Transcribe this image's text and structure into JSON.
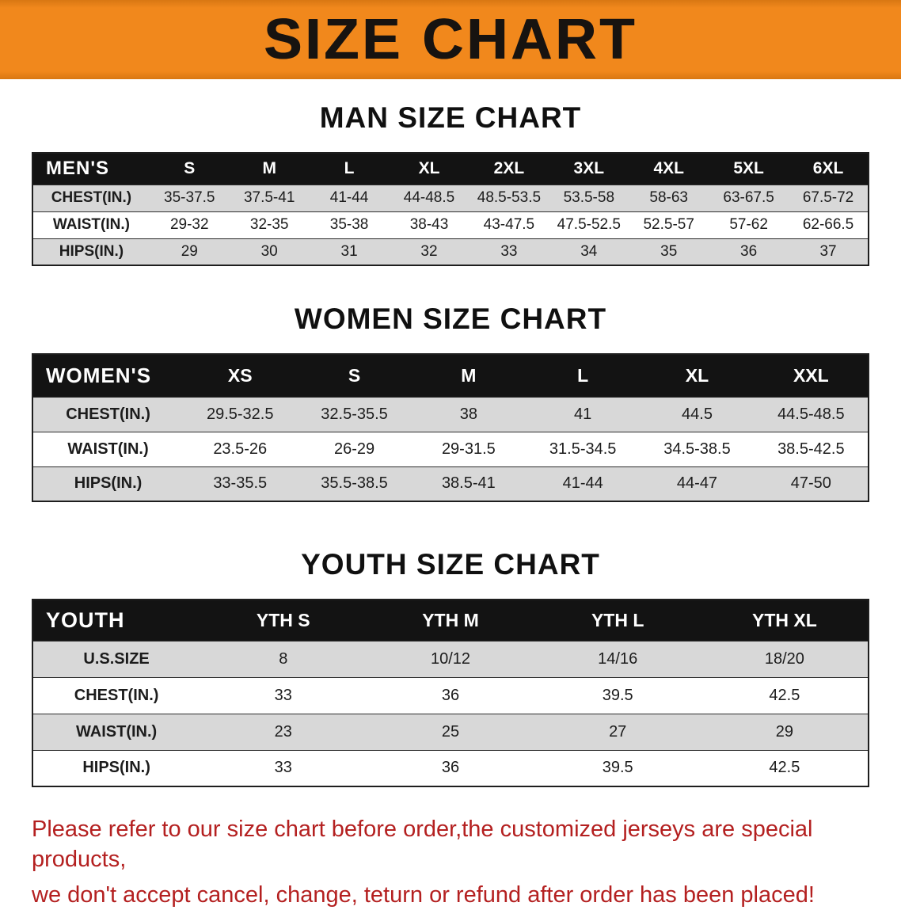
{
  "banner": {
    "title": "SIZE CHART"
  },
  "chart_data": [
    {
      "type": "table",
      "title": "MAN SIZE CHART",
      "corner_label": "MEN'S",
      "columns": [
        "S",
        "M",
        "L",
        "XL",
        "2XL",
        "3XL",
        "4XL",
        "5XL",
        "6XL"
      ],
      "rows": [
        {
          "label": "CHEST(IN.)",
          "values": [
            "35-37.5",
            "37.5-41",
            "41-44",
            "44-48.5",
            "48.5-53.5",
            "53.5-58",
            "58-63",
            "63-67.5",
            "67.5-72"
          ]
        },
        {
          "label": "WAIST(IN.)",
          "values": [
            "29-32",
            "32-35",
            "35-38",
            "38-43",
            "43-47.5",
            "47.5-52.5",
            "52.5-57",
            "57-62",
            "62-66.5"
          ]
        },
        {
          "label": "HIPS(IN.)",
          "values": [
            "29",
            "30",
            "31",
            "32",
            "33",
            "34",
            "35",
            "36",
            "37"
          ]
        }
      ]
    },
    {
      "type": "table",
      "title": "WOMEN SIZE CHART",
      "corner_label": "WOMEN'S",
      "columns": [
        "XS",
        "S",
        "M",
        "L",
        "XL",
        "XXL"
      ],
      "rows": [
        {
          "label": "CHEST(IN.)",
          "values": [
            "29.5-32.5",
            "32.5-35.5",
            "38",
            "41",
            "44.5",
            "44.5-48.5"
          ]
        },
        {
          "label": "WAIST(IN.)",
          "values": [
            "23.5-26",
            "26-29",
            "29-31.5",
            "31.5-34.5",
            "34.5-38.5",
            "38.5-42.5"
          ]
        },
        {
          "label": "HIPS(IN.)",
          "values": [
            "33-35.5",
            "35.5-38.5",
            "38.5-41",
            "41-44",
            "44-47",
            "47-50"
          ]
        }
      ]
    },
    {
      "type": "table",
      "title": "YOUTH SIZE CHART",
      "corner_label": "YOUTH",
      "columns": [
        "YTH S",
        "YTH M",
        "YTH L",
        "YTH XL"
      ],
      "rows": [
        {
          "label": "U.S.SIZE",
          "values": [
            "8",
            "10/12",
            "14/16",
            "18/20"
          ]
        },
        {
          "label": "CHEST(IN.)",
          "values": [
            "33",
            "36",
            "39.5",
            "42.5"
          ]
        },
        {
          "label": "WAIST(IN.)",
          "values": [
            "23",
            "25",
            "27",
            "29"
          ]
        },
        {
          "label": "HIPS(IN.)",
          "values": [
            "33",
            "36",
            "39.5",
            "42.5"
          ]
        }
      ]
    }
  ],
  "disclaimer": {
    "line1": "Please refer to our size chart before order,the customized jerseys are special products,",
    "line2": "we don't accept cancel, change, teturn or refund after order has been placed!"
  },
  "colors": {
    "banner_orange": "#f1881c",
    "banner_text": "#171310",
    "table_header_black": "#131313",
    "row_gray": "#d8d8d8",
    "row_white": "#ffffff",
    "disclaimer_red": "#b42020"
  }
}
